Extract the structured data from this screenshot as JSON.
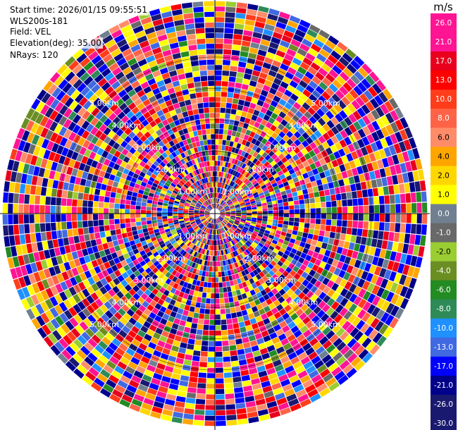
{
  "info": {
    "start_time": "Start time: 2026/01/15 09:55:51",
    "instrument": "WLS200s-181",
    "field": "Field: VEL",
    "elevation": "Elevation(deg): 35.00",
    "nrays": "NRays: 120"
  },
  "colorbar": {
    "unit": "m/s",
    "ticks": [
      "26.0",
      "21.0",
      "17.0",
      "13.0",
      "10.0",
      "8.0",
      "6.0",
      "4.0",
      "2.0",
      "1.0",
      "0.0",
      "-1.0",
      "-2.0",
      "-4.0",
      "-6.0",
      "-8.0",
      "-10.0",
      "-13.0",
      "-17.0",
      "-21.0",
      "-26.0",
      "-30.0"
    ],
    "colors": [
      "#ff1493",
      "#ff1493",
      "#e8001c",
      "#ff0000",
      "#ff3d1a",
      "#ff6347",
      "#ff8c69",
      "#ffa500",
      "#ffd700",
      "#ffff00",
      "#708090",
      "#696969",
      "#9acd32",
      "#6b8e23",
      "#228b22",
      "#2e8b57",
      "#1e90ff",
      "#4169e1",
      "#0000ff",
      "#00008b",
      "#191970",
      "#191970"
    ]
  },
  "chart_data": {
    "type": "heatmap",
    "projection": "polar PPI",
    "field": "VEL",
    "units": "m/s",
    "elevation_deg": 35.0,
    "n_rays": 120,
    "range_rings_km": [
      1.0,
      2.0,
      3.0,
      4.0,
      5.0
    ],
    "ring_labels": [
      "1.00km",
      "2.00km",
      "3.00km",
      "4.00km",
      "5.00km"
    ],
    "max_range_km": 6.8,
    "n_gates": 40,
    "value_range": [
      -30,
      26
    ]
  }
}
